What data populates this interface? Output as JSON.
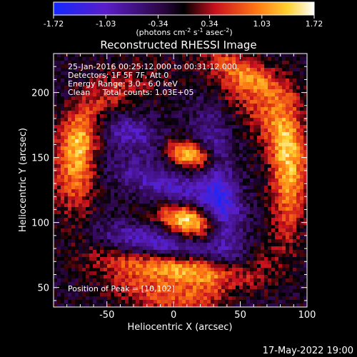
{
  "chart_data": {
    "type": "heatmap",
    "title": "Reconstructed RHESSI Image",
    "xlabel": "Heliocentric X (arcsec)",
    "ylabel": "Heliocentric Y (arcsec)",
    "xlim": [
      -90,
      100
    ],
    "ylim": [
      35,
      230
    ],
    "x_ticks": [
      -50,
      0,
      50,
      100
    ],
    "y_ticks": [
      50,
      100,
      150,
      200
    ],
    "colorbar": {
      "min": -1.72,
      "max": 1.72,
      "ticks": [
        "-1.72",
        "-1.03",
        "-0.34",
        "0.34",
        "1.03",
        "1.72"
      ],
      "unit_prefix": "(photons cm",
      "unit_exp1": "-2",
      "unit_mid1": " s",
      "unit_exp2": "-1",
      "unit_mid2": " asec",
      "unit_exp3": "-2",
      "unit_suffix": ")"
    },
    "annotations": [
      "25-Jan-2016 00:25:12.000 to 00:31:12.000",
      "Detectors: 1F 5F 7F, Att 0",
      "Energy Range: 3.0 - 6.0 keV",
      "Clean     Total counts: 1.03E+05"
    ],
    "peak_label": "Position of Peak = [10,102]",
    "sources": [
      {
        "x": 12,
        "y": 152,
        "peak": 1.72
      },
      {
        "x": 10,
        "y": 102,
        "peak": 1.72
      },
      {
        "x": 5,
        "y": 65,
        "peak": 1.2
      }
    ]
  },
  "footer_date": "17-May-2022 19:00"
}
